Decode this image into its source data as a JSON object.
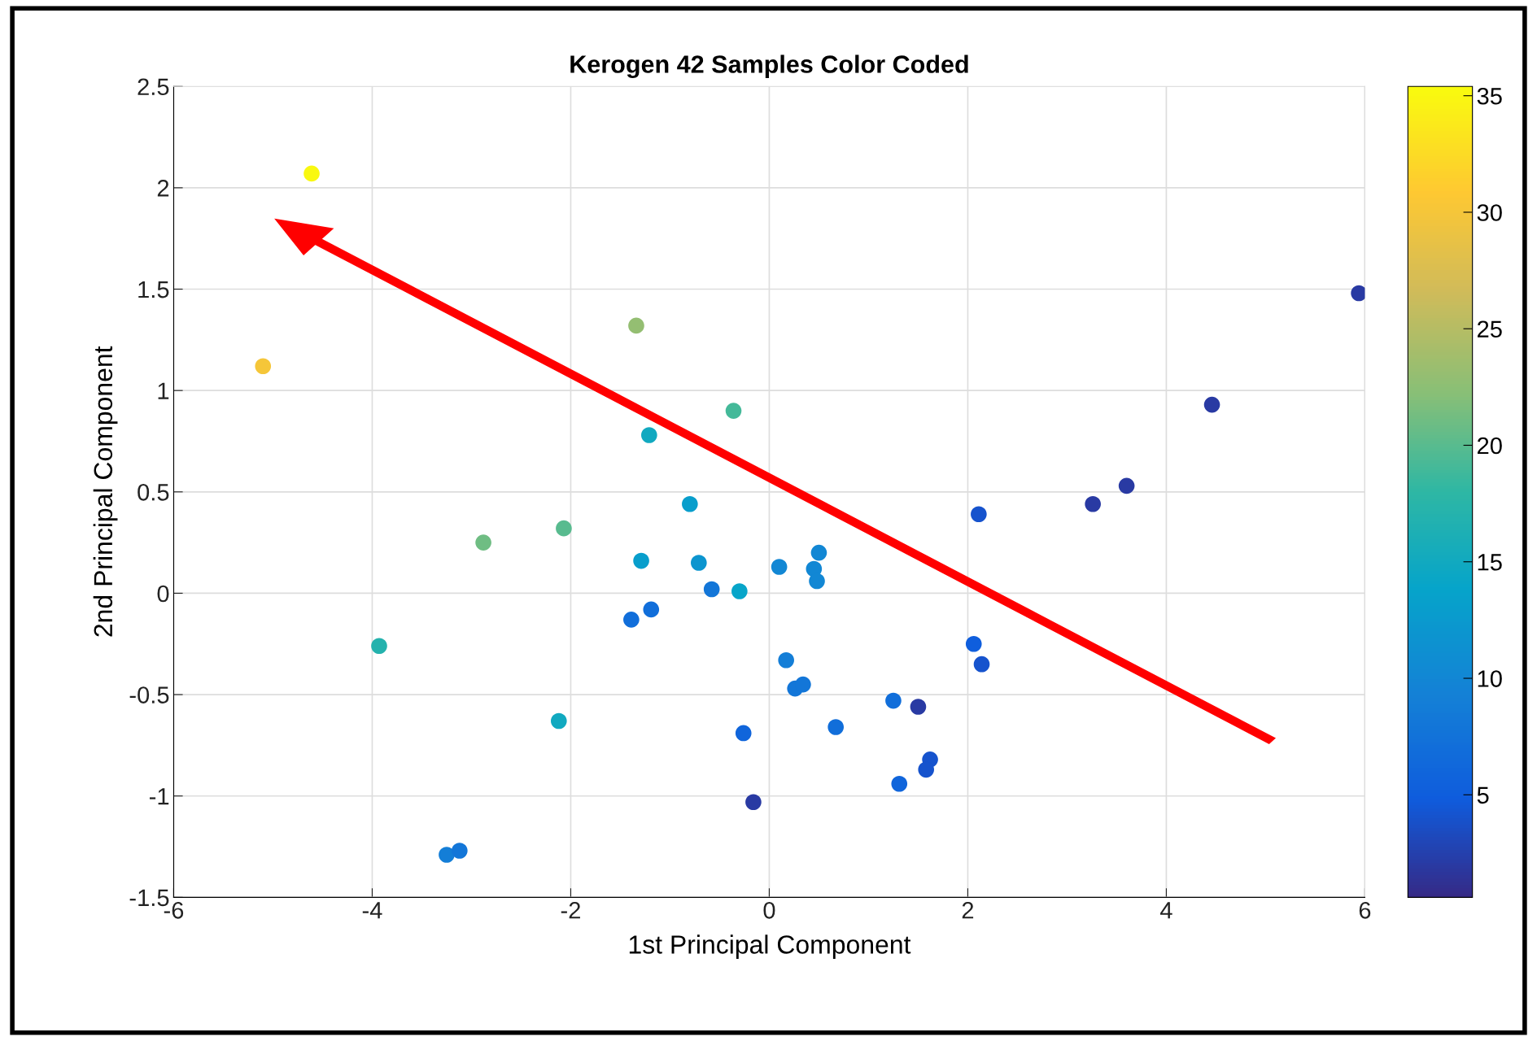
{
  "chart_data": {
    "type": "scatter",
    "title": "Kerogen 42 Samples Color Coded",
    "xlabel": "1st Principal Component",
    "ylabel": "2nd Principal Component",
    "xlim": [
      -6,
      6
    ],
    "xticks": [
      -6,
      -4,
      -2,
      0,
      2,
      4,
      6
    ],
    "ylim": [
      -1.5,
      2.5
    ],
    "yticks": [
      -1.5,
      -1,
      -0.5,
      0,
      0.5,
      1,
      1.5,
      2,
      2.5
    ],
    "clim": [
      0.6,
      35.4
    ],
    "cticks": [
      5,
      10,
      15,
      20,
      25,
      30,
      35
    ],
    "grid": true,
    "marker": "circle",
    "series": [
      {
        "x": [
          -4.61,
          -5.1,
          -1.34,
          -0.36,
          -1.21,
          -0.8,
          -2.88,
          -2.07,
          -1.29,
          -0.71,
          -0.58,
          -0.3,
          -1.39,
          -1.19,
          -3.93,
          -2.12,
          -3.25,
          -3.12,
          -0.26,
          -0.16,
          0.1,
          0.5,
          0.45,
          0.48,
          0.17,
          0.26,
          0.34,
          0.67,
          1.25,
          1.5,
          1.31,
          1.62,
          1.58,
          2.06,
          2.14,
          2.11,
          3.26,
          3.6,
          4.46,
          5.94
        ],
        "values": [
          2.07,
          1.12,
          1.32,
          0.9,
          0.78,
          0.44,
          0.25,
          0.32,
          0.16,
          0.15,
          0.02,
          0.01,
          -0.13,
          -0.08,
          -0.26,
          -0.63,
          -1.29,
          -1.27,
          -0.69,
          -1.03,
          0.13,
          0.2,
          0.12,
          0.06,
          -0.33,
          -0.47,
          -0.45,
          -0.66,
          -0.53,
          -0.56,
          -0.94,
          -0.82,
          -0.87,
          -0.25,
          -0.35,
          0.39,
          0.44,
          0.53,
          0.93,
          1.48
        ],
        "cvalues": [
          35,
          30,
          23,
          19,
          15,
          13,
          21,
          20,
          13,
          12,
          8,
          14,
          7,
          7,
          17,
          15,
          9,
          8,
          6,
          2,
          10,
          10,
          10,
          10,
          9,
          8,
          8,
          7,
          7,
          2,
          6,
          4,
          4,
          5,
          4,
          4,
          2,
          2,
          2,
          2
        ]
      }
    ]
  }
}
